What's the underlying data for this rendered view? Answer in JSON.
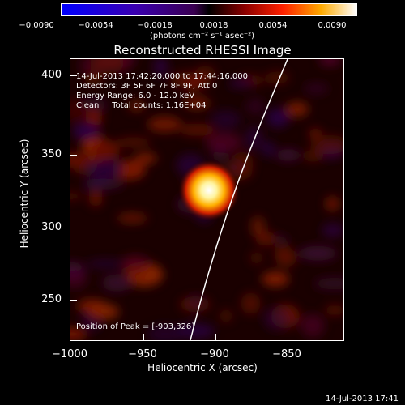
{
  "colorbar": {
    "ticks": [
      "−0.0090",
      "−0.0054",
      "−0.0018",
      "0.0018",
      "0.0054",
      "0.0090"
    ],
    "units": "(photons cm⁻² s⁻¹ asec⁻²)",
    "min": -0.009,
    "max": 0.009
  },
  "plot": {
    "title": "Reconstructed RHESSI Image",
    "info_lines": [
      "14-Jul-2013 17:42:20.000 to 17:44:16.000",
      "Detectors: 3F 5F 6F 7F 8F 9F, Att 0",
      "Energy Range: 6.0 - 12.0 keV",
      "Clean     Total counts: 1.16E+04"
    ],
    "peak_label": "Position of Peak = [-903,326]",
    "xlabel": "Heliocentric X (arcsec)",
    "ylabel": "Heliocentric Y (arcsec)",
    "xticks": [
      "−1000",
      "−950",
      "−900",
      "−850"
    ],
    "yticks": [
      "400",
      "350",
      "300",
      "250"
    ],
    "xlim": [
      -1000,
      -810
    ],
    "ylim": [
      220,
      415
    ],
    "peak_x": -903,
    "peak_y": 326
  },
  "footer": {
    "timestamp": "14-Jul-2013 17:41"
  }
}
